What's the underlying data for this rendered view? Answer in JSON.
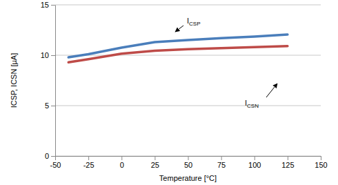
{
  "chart_data": {
    "type": "line",
    "x_label": "Temperature [°C]",
    "y_label": "ICSP, ICSN [µA]",
    "x": [
      -40,
      -25,
      0,
      25,
      50,
      75,
      100,
      125
    ],
    "series": [
      {
        "name": "ICSP",
        "color": "#4a7ebb",
        "values": [
          9.8,
          10.1,
          10.75,
          11.3,
          11.5,
          11.7,
          11.85,
          12.05
        ]
      },
      {
        "name": "ICSN",
        "color": "#be4b48",
        "values": [
          9.3,
          9.6,
          10.15,
          10.45,
          10.6,
          10.7,
          10.8,
          10.9
        ]
      }
    ],
    "xlim": [
      -50,
      150
    ],
    "xticks": [
      -50,
      -25,
      0,
      25,
      50,
      75,
      100,
      125,
      150
    ],
    "ylim": [
      0,
      15
    ],
    "yticks": [
      0,
      5,
      10,
      15
    ],
    "grid": true
  }
}
